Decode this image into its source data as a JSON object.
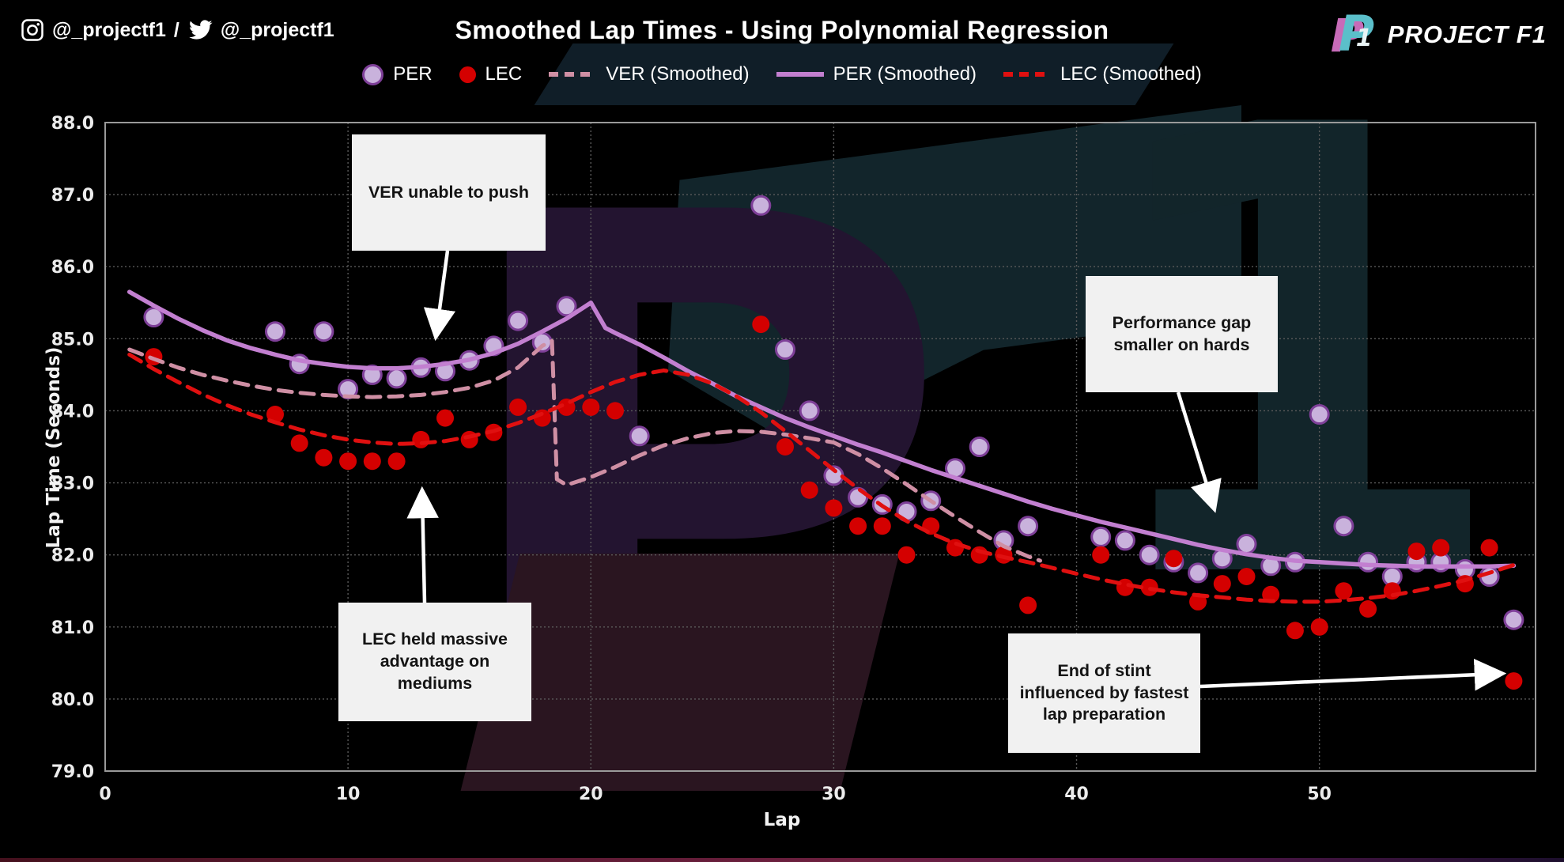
{
  "header": {
    "instagram_handle": "@_projectf1",
    "separator": "/",
    "twitter_handle": "@_projectf1",
    "title": "Smoothed Lap Times - Using Polynomial Regression",
    "brand": "PROJECT F1"
  },
  "legend": [
    {
      "label": "PER",
      "marker": "dot",
      "color": "#c9b2dc",
      "stroke": "#7e3f98"
    },
    {
      "label": "LEC",
      "marker": "dot",
      "color": "#d40000"
    },
    {
      "label": "VER (Smoothed)",
      "marker": "dashed-line",
      "color": "#cf8fa4"
    },
    {
      "label": "PER (Smoothed)",
      "marker": "solid-line",
      "color": "#c27fd0"
    },
    {
      "label": "LEC (Smoothed)",
      "marker": "dashed-line",
      "color": "#e01010"
    }
  ],
  "annotations": [
    {
      "id": "ver-unable-to-push",
      "text": "VER unable to push"
    },
    {
      "id": "lec-advantage",
      "text": "LEC held massive advantage on mediums"
    },
    {
      "id": "gap-smaller-hards",
      "text": "Performance gap smaller on hards"
    },
    {
      "id": "end-of-stint",
      "text": "End of stint influenced by fastest lap preparation"
    }
  ],
  "chart_data": {
    "type": "scatter",
    "title": "Smoothed Lap Times - Using Polynomial Regression",
    "xlabel": "Lap",
    "ylabel": "Lap Time (Seconds)",
    "xlim": [
      0,
      58.9
    ],
    "ylim": [
      79.0,
      88.0
    ],
    "grid": true,
    "legend_position": "top-center",
    "xticks": [
      0,
      10,
      20,
      30,
      40,
      50
    ],
    "yticks": [
      {
        "value": 88,
        "label": "88.0"
      },
      {
        "value": 87,
        "label": "87.0"
      },
      {
        "value": 86,
        "label": "86.0"
      },
      {
        "value": 85,
        "label": "85.0"
      },
      {
        "value": 84,
        "label": "84.0"
      },
      {
        "value": 83,
        "label": "83.0"
      },
      {
        "value": 82,
        "label": "82.0"
      },
      {
        "value": 81,
        "label": "81.0"
      },
      {
        "value": 80,
        "label": "80.0"
      },
      {
        "value": 79,
        "label": "79.0"
      }
    ],
    "series": [
      {
        "name": "PER",
        "kind": "scatter",
        "color": "#c9b2dc",
        "stroke": "#7e3f98",
        "radius": 11.5,
        "points": [
          [
            2,
            85.3
          ],
          [
            7,
            85.1
          ],
          [
            8,
            84.65
          ],
          [
            9,
            85.1
          ],
          [
            10,
            84.3
          ],
          [
            11,
            84.5
          ],
          [
            12,
            84.45
          ],
          [
            13,
            84.6
          ],
          [
            14,
            84.55
          ],
          [
            15,
            84.7
          ],
          [
            16,
            84.9
          ],
          [
            17,
            85.25
          ],
          [
            18,
            84.95
          ],
          [
            19,
            85.45
          ],
          [
            22,
            83.65
          ],
          [
            27,
            86.85
          ],
          [
            28,
            84.85
          ],
          [
            29,
            84.0
          ],
          [
            30,
            83.1
          ],
          [
            31,
            82.8
          ],
          [
            32,
            82.7
          ],
          [
            33,
            82.6
          ],
          [
            34,
            82.75
          ],
          [
            35,
            83.2
          ],
          [
            36,
            83.5
          ],
          [
            37,
            82.2
          ],
          [
            38,
            82.4
          ],
          [
            41,
            82.25
          ],
          [
            42,
            82.2
          ],
          [
            43,
            82.0
          ],
          [
            44,
            81.9
          ],
          [
            45,
            81.75
          ],
          [
            46,
            81.95
          ],
          [
            47,
            82.15
          ],
          [
            48,
            81.85
          ],
          [
            49,
            81.9
          ],
          [
            50,
            83.95
          ],
          [
            51,
            82.4
          ],
          [
            52,
            81.9
          ],
          [
            53,
            81.7
          ],
          [
            54,
            81.9
          ],
          [
            55,
            81.9
          ],
          [
            56,
            81.8
          ],
          [
            57,
            81.7
          ],
          [
            58,
            81.1
          ]
        ]
      },
      {
        "name": "LEC",
        "kind": "scatter",
        "color": "#d40000",
        "radius": 11,
        "points": [
          [
            2,
            84.75
          ],
          [
            7,
            83.95
          ],
          [
            8,
            83.55
          ],
          [
            9,
            83.35
          ],
          [
            10,
            83.3
          ],
          [
            11,
            83.3
          ],
          [
            12,
            83.3
          ],
          [
            13,
            83.6
          ],
          [
            14,
            83.9
          ],
          [
            15,
            83.6
          ],
          [
            16,
            83.7
          ],
          [
            17,
            84.05
          ],
          [
            18,
            83.9
          ],
          [
            19,
            84.05
          ],
          [
            20,
            84.05
          ],
          [
            21,
            84.0
          ],
          [
            27,
            85.2
          ],
          [
            28,
            83.5
          ],
          [
            29,
            82.9
          ],
          [
            30,
            82.65
          ],
          [
            31,
            82.4
          ],
          [
            32,
            82.4
          ],
          [
            33,
            82.0
          ],
          [
            34,
            82.4
          ],
          [
            35,
            82.1
          ],
          [
            36,
            82.0
          ],
          [
            37,
            82.0
          ],
          [
            38,
            81.3
          ],
          [
            41,
            82.0
          ],
          [
            42,
            81.55
          ],
          [
            43,
            81.55
          ],
          [
            44,
            81.95
          ],
          [
            45,
            81.35
          ],
          [
            46,
            81.6
          ],
          [
            47,
            81.7
          ],
          [
            48,
            81.45
          ],
          [
            49,
            80.95
          ],
          [
            50,
            81.0
          ],
          [
            51,
            81.5
          ],
          [
            52,
            81.25
          ],
          [
            53,
            81.5
          ],
          [
            54,
            82.05
          ],
          [
            55,
            82.1
          ],
          [
            56,
            81.6
          ],
          [
            57,
            82.1
          ],
          [
            58,
            80.25
          ]
        ]
      },
      {
        "name": "VER (Smoothed)",
        "kind": "line",
        "style": "dashed",
        "color": "#cf8fa4",
        "width": 5,
        "points": [
          [
            1,
            84.85
          ],
          [
            2,
            84.72
          ],
          [
            3,
            84.6
          ],
          [
            4,
            84.5
          ],
          [
            5,
            84.42
          ],
          [
            6,
            84.35
          ],
          [
            7,
            84.29
          ],
          [
            8,
            84.25
          ],
          [
            9,
            84.22
          ],
          [
            10,
            84.2
          ],
          [
            11,
            84.19
          ],
          [
            12,
            84.2
          ],
          [
            13,
            84.22
          ],
          [
            14,
            84.26
          ],
          [
            15,
            84.32
          ],
          [
            16,
            84.42
          ],
          [
            17,
            84.6
          ],
          [
            18,
            84.9
          ],
          [
            18.4,
            84.97
          ],
          [
            18.6,
            83.05
          ],
          [
            19,
            82.97
          ],
          [
            20,
            83.08
          ],
          [
            21,
            83.22
          ],
          [
            22,
            83.38
          ],
          [
            23,
            83.52
          ],
          [
            24,
            83.62
          ],
          [
            25,
            83.69
          ],
          [
            26,
            83.72
          ],
          [
            27,
            83.71
          ],
          [
            28,
            83.67
          ],
          [
            29,
            83.62
          ],
          [
            30,
            83.56
          ],
          [
            31,
            83.4
          ],
          [
            32,
            83.2
          ],
          [
            33,
            82.98
          ],
          [
            34,
            82.75
          ],
          [
            35,
            82.53
          ],
          [
            36,
            82.32
          ],
          [
            37,
            82.12
          ],
          [
            38,
            81.98
          ],
          [
            38.5,
            81.92
          ]
        ]
      },
      {
        "name": "PER (Smoothed)",
        "kind": "line",
        "style": "solid",
        "color": "#c27fd0",
        "width": 5.5,
        "points": [
          [
            1,
            85.65
          ],
          [
            2,
            85.46
          ],
          [
            3,
            85.28
          ],
          [
            4,
            85.12
          ],
          [
            5,
            84.98
          ],
          [
            6,
            84.87
          ],
          [
            7,
            84.78
          ],
          [
            8,
            84.7
          ],
          [
            9,
            84.65
          ],
          [
            10,
            84.61
          ],
          [
            11,
            84.59
          ],
          [
            12,
            84.59
          ],
          [
            13,
            84.61
          ],
          [
            14,
            84.65
          ],
          [
            15,
            84.71
          ],
          [
            16,
            84.8
          ],
          [
            17,
            84.93
          ],
          [
            18,
            85.1
          ],
          [
            19,
            85.28
          ],
          [
            20,
            85.5
          ],
          [
            20.6,
            85.15
          ],
          [
            21,
            85.08
          ],
          [
            22,
            84.92
          ],
          [
            23,
            84.74
          ],
          [
            24,
            84.55
          ],
          [
            25,
            84.38
          ],
          [
            26,
            84.2
          ],
          [
            27,
            84.05
          ],
          [
            28,
            83.9
          ],
          [
            29,
            83.77
          ],
          [
            30,
            83.65
          ],
          [
            31,
            83.53
          ],
          [
            32,
            83.42
          ],
          [
            33,
            83.3
          ],
          [
            34,
            83.18
          ],
          [
            35,
            83.07
          ],
          [
            36,
            82.96
          ],
          [
            37,
            82.85
          ],
          [
            38,
            82.74
          ],
          [
            39,
            82.64
          ],
          [
            40,
            82.55
          ],
          [
            41,
            82.46
          ],
          [
            42,
            82.38
          ],
          [
            43,
            82.3
          ],
          [
            44,
            82.22
          ],
          [
            45,
            82.14
          ],
          [
            46,
            82.07
          ],
          [
            47,
            82.01
          ],
          [
            48,
            81.96
          ],
          [
            49,
            81.92
          ],
          [
            50,
            81.9
          ],
          [
            51,
            81.88
          ],
          [
            52,
            81.86
          ],
          [
            53,
            81.85
          ],
          [
            54,
            81.84
          ],
          [
            55,
            81.84
          ],
          [
            56,
            81.84
          ],
          [
            57,
            81.84
          ],
          [
            58,
            81.85
          ]
        ]
      },
      {
        "name": "LEC (Smoothed)",
        "kind": "line",
        "style": "dashed",
        "color": "#e01010",
        "width": 5,
        "points": [
          [
            1,
            84.78
          ],
          [
            2,
            84.58
          ],
          [
            3,
            84.4
          ],
          [
            4,
            84.23
          ],
          [
            5,
            84.08
          ],
          [
            6,
            83.95
          ],
          [
            7,
            83.84
          ],
          [
            8,
            83.74
          ],
          [
            9,
            83.66
          ],
          [
            10,
            83.6
          ],
          [
            11,
            83.56
          ],
          [
            12,
            83.54
          ],
          [
            13,
            83.55
          ],
          [
            14,
            83.58
          ],
          [
            15,
            83.64
          ],
          [
            16,
            83.72
          ],
          [
            17,
            83.83
          ],
          [
            18,
            83.96
          ],
          [
            19,
            84.1
          ],
          [
            20,
            84.26
          ],
          [
            21,
            84.4
          ],
          [
            22,
            84.5
          ],
          [
            23,
            84.56
          ],
          [
            24,
            84.5
          ],
          [
            25,
            84.38
          ],
          [
            26,
            84.2
          ],
          [
            27,
            83.98
          ],
          [
            28,
            83.72
          ],
          [
            29,
            83.45
          ],
          [
            30,
            83.18
          ],
          [
            31,
            82.92
          ],
          [
            32,
            82.68
          ],
          [
            33,
            82.47
          ],
          [
            34,
            82.3
          ],
          [
            35,
            82.16
          ],
          [
            36,
            82.05
          ],
          [
            37,
            81.97
          ],
          [
            38,
            81.9
          ],
          [
            39,
            81.82
          ],
          [
            40,
            81.74
          ],
          [
            41,
            81.66
          ],
          [
            42,
            81.59
          ],
          [
            43,
            81.53
          ],
          [
            44,
            81.48
          ],
          [
            45,
            81.44
          ],
          [
            46,
            81.41
          ],
          [
            47,
            81.38
          ],
          [
            48,
            81.36
          ],
          [
            49,
            81.35
          ],
          [
            50,
            81.35
          ],
          [
            51,
            81.37
          ],
          [
            52,
            81.4
          ],
          [
            53,
            81.44
          ],
          [
            54,
            81.5
          ],
          [
            55,
            81.57
          ],
          [
            56,
            81.65
          ],
          [
            57,
            81.75
          ],
          [
            58,
            81.86
          ]
        ]
      }
    ]
  }
}
